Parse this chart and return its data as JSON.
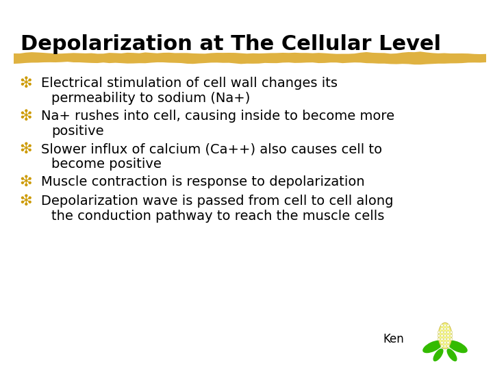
{
  "title": "Depolarization at The Cellular Level",
  "title_fontsize": 22,
  "title_color": "#000000",
  "background_color": "#ffffff",
  "bullet_symbol": "❇",
  "bullet_color": "#CC9900",
  "text_color": "#000000",
  "text_fontsize": 14,
  "bullets": [
    {
      "line1": "Electrical stimulation of cell wall changes its",
      "line2": "permeability to sodium (Na+)"
    },
    {
      "line1": "Na+ rushes into cell, causing inside to become more",
      "line2": "positive"
    },
    {
      "line1": "Slower influx of calcium (Ca++) also causes cell to",
      "line2": "become positive"
    },
    {
      "line1": "Muscle contraction is response to depolarization",
      "line2": null
    },
    {
      "line1": "Depolarization wave is passed from cell to cell along",
      "line2": "the conduction pathway to reach the muscle cells"
    }
  ],
  "bar_color": "#DAA520",
  "bar_alpha": 0.85,
  "ken_text": "Ken",
  "ken_fontsize": 12,
  "corn_green": "#33BB00",
  "corn_yellow": "#FFFF88"
}
